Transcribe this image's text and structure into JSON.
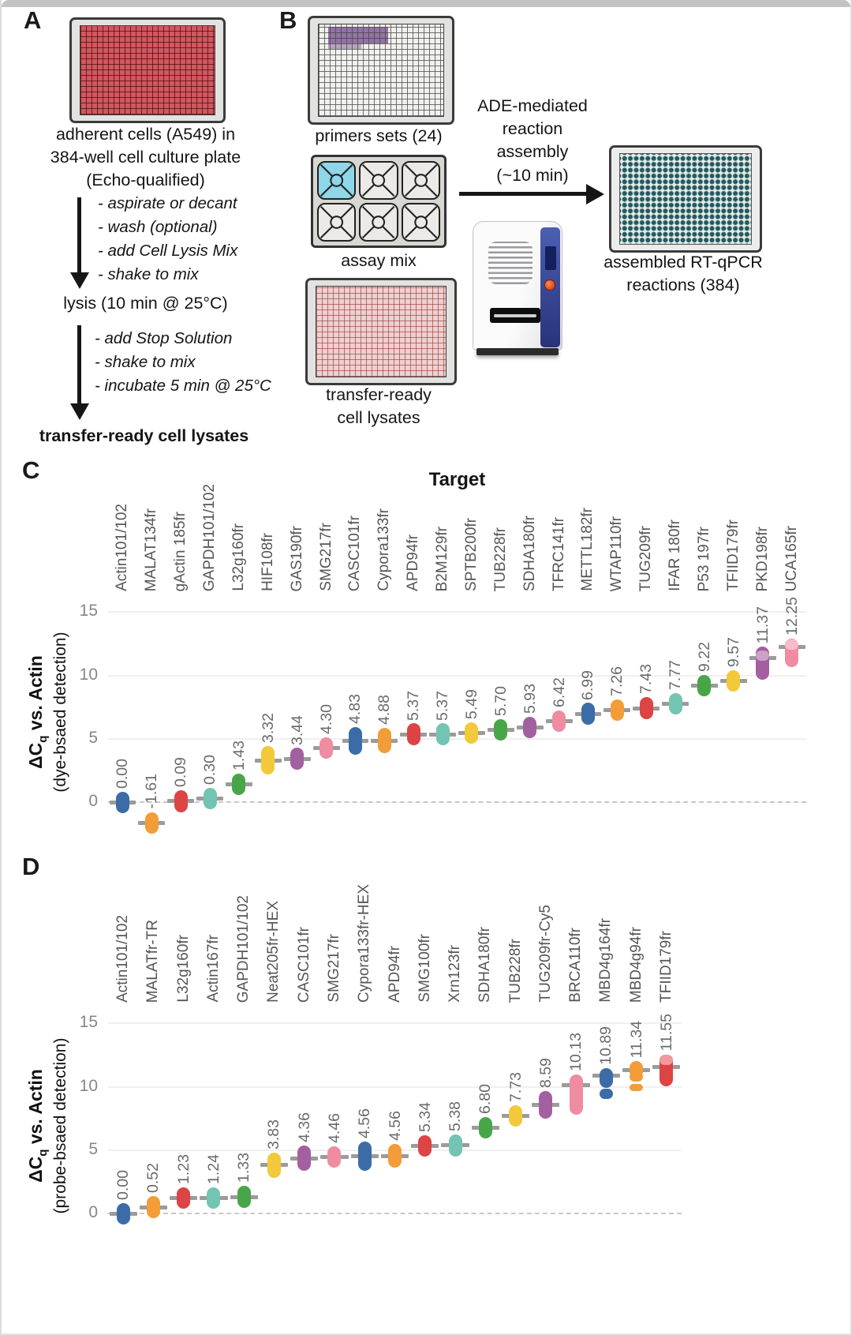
{
  "panels": {
    "a": {
      "label": "A",
      "plate_caption": "adherent cells (A549) in\n384-well cell culture plate\n(Echo-qualified)",
      "step1": [
        "- aspirate or decant",
        "- wash (optional)",
        "- add Cell Lysis Mix",
        "- shake to mix"
      ],
      "lysis": "lysis (10 min @ 25°C)",
      "step2": [
        "- add Stop Solution",
        "- shake to mix",
        "- incubate 5 min @ 25°C"
      ],
      "result": "transfer-ready cell lysates"
    },
    "b": {
      "label": "B",
      "primers_caption": "primers sets (24)",
      "assay_caption": "assay mix",
      "lysates_caption": "transfer-ready\ncell lysates",
      "assembly_text": "ADE-mediated\nreaction\nassembly\n(~10 min)",
      "product_caption": "assembled RT-qPCR\nreactions (384)"
    },
    "c": {
      "label": "C"
    },
    "d": {
      "label": "D"
    }
  },
  "colors": {
    "blue": "#3c6ca8",
    "orange": "#f29d38",
    "red": "#dd4444",
    "teal": "#74c4b4",
    "green": "#48a648",
    "yellow": "#f2c93a",
    "purple": "#a360a0",
    "pink": "#f08ca2"
  },
  "chart_data": [
    {
      "id": "C",
      "type": "scatter",
      "title": "Target",
      "ylabel": {
        "pre": "ΔC",
        "sub": "q",
        "post": " vs. Actin"
      },
      "ylabel_sub": "(dye-bsaed detection)",
      "yticks": [
        15,
        10,
        5,
        0
      ],
      "ylim": [
        -3.4,
        16.4
      ],
      "zero_line": "dashed",
      "points": [
        {
          "label": "Actin101/102",
          "value": 0.0,
          "display": "0.00",
          "color": "blue"
        },
        {
          "label": "MALAT134fr",
          "value": -1.61,
          "display": "-1.61",
          "color": "orange"
        },
        {
          "label": "gActin 185fr",
          "value": 0.09,
          "display": "0.09",
          "color": "red"
        },
        {
          "label": "GAPDH101/102",
          "value": 0.3,
          "display": "0.30",
          "color": "teal"
        },
        {
          "label": "L32g160fr",
          "value": 1.43,
          "display": "1.43",
          "color": "green"
        },
        {
          "label": "HIF108fr",
          "value": 3.32,
          "display": "3.32",
          "color": "yellow",
          "h": 2.2
        },
        {
          "label": "GAS190fr",
          "value": 3.44,
          "display": "3.44",
          "color": "purple"
        },
        {
          "label": "SMG217fr",
          "value": 4.3,
          "display": "4.30",
          "color": "pink"
        },
        {
          "label": "CASC101fr",
          "value": 4.83,
          "display": "4.83",
          "color": "blue",
          "h": 2.2
        },
        {
          "label": "Cypora133fr",
          "value": 4.88,
          "display": "4.88",
          "color": "orange",
          "h": 2.0
        },
        {
          "label": "APD94fr",
          "value": 5.37,
          "display": "5.37",
          "color": "red"
        },
        {
          "label": "B2M129fr",
          "value": 5.37,
          "display": "5.37",
          "color": "teal"
        },
        {
          "label": "SPTB200fr",
          "value": 5.49,
          "display": "5.49",
          "color": "yellow"
        },
        {
          "label": "TUB228fr",
          "value": 5.7,
          "display": "5.70",
          "color": "green"
        },
        {
          "label": "SDHA180fr",
          "value": 5.93,
          "display": "5.93",
          "color": "purple"
        },
        {
          "label": "TFRC141fr",
          "value": 6.42,
          "display": "6.42",
          "color": "pink"
        },
        {
          "label": "METTL182fr",
          "value": 6.99,
          "display": "6.99",
          "color": "blue"
        },
        {
          "label": "WTAP110fr",
          "value": 7.26,
          "display": "7.26",
          "color": "orange"
        },
        {
          "label": "TUG209fr",
          "value": 7.43,
          "display": "7.43",
          "color": "red"
        },
        {
          "label": "IFAR 180fr",
          "value": 7.77,
          "display": "7.77",
          "color": "teal"
        },
        {
          "label": "P53 197fr",
          "value": 9.22,
          "display": "9.22",
          "color": "green"
        },
        {
          "label": "TFIID179fr",
          "value": 9.57,
          "display": "9.57",
          "color": "yellow"
        },
        {
          "label": "PKD198fr",
          "value": 11.37,
          "display": "11.37",
          "color": "purple",
          "blobs": [
            {
              "c": 11.0,
              "h": 2.6
            },
            {
              "c": 11.55,
              "h": 0.8,
              "color": "#cfa0c8"
            }
          ]
        },
        {
          "label": "UCA165fr",
          "value": 12.25,
          "display": "12.25",
          "color": "pink",
          "blobs": [
            {
              "c": 11.8,
              "h": 2.2
            },
            {
              "c": 12.45,
              "h": 0.8,
              "color": "#f6bccb"
            }
          ]
        }
      ]
    },
    {
      "id": "D",
      "type": "scatter",
      "title": "",
      "ylabel": {
        "pre": "ΔC",
        "sub": "q",
        "post": " vs. Actin"
      },
      "ylabel_sub": "(probe-bsaed detection)",
      "yticks": [
        15,
        10,
        5,
        0
      ],
      "ylim": [
        -3.4,
        16.4
      ],
      "zero_line": "dashed",
      "points": [
        {
          "label": "Actin101/102",
          "value": 0.0,
          "display": "0.00",
          "color": "blue"
        },
        {
          "label": "MALATfr-TR",
          "value": 0.52,
          "display": "0.52",
          "color": "orange"
        },
        {
          "label": "L32g160fr",
          "value": 1.23,
          "display": "1.23",
          "color": "red"
        },
        {
          "label": "Actin167fr",
          "value": 1.24,
          "display": "1.24",
          "color": "teal"
        },
        {
          "label": "GAPDH101/102",
          "value": 1.33,
          "display": "1.33",
          "color": "green"
        },
        {
          "label": "Neat205fr-HEX",
          "value": 3.83,
          "display": "3.83",
          "color": "yellow",
          "h": 2.0
        },
        {
          "label": "CASC101fr",
          "value": 4.36,
          "display": "4.36",
          "color": "purple",
          "h": 2.0
        },
        {
          "label": "SMG217fr",
          "value": 4.46,
          "display": "4.46",
          "color": "pink"
        },
        {
          "label": "Cypora133fr-HEX",
          "value": 4.56,
          "display": "4.56",
          "color": "blue",
          "h": 2.3
        },
        {
          "label": "APD94fr",
          "value": 4.56,
          "display": "4.56",
          "color": "orange",
          "h": 1.9
        },
        {
          "label": "SMG100fr",
          "value": 5.34,
          "display": "5.34",
          "color": "red"
        },
        {
          "label": "Xrn123fr",
          "value": 5.38,
          "display": "5.38",
          "color": "teal"
        },
        {
          "label": "SDHA180fr",
          "value": 6.8,
          "display": "6.80",
          "color": "green"
        },
        {
          "label": "TUB228fr",
          "value": 7.73,
          "display": "7.73",
          "color": "yellow"
        },
        {
          "label": "TUG209fr-Cy5",
          "value": 8.59,
          "display": "8.59",
          "color": "purple",
          "h": 2.2
        },
        {
          "label": "BRCA110fr",
          "value": 10.13,
          "display": "10.13",
          "color": "pink",
          "blobs": [
            {
              "c": 9.4,
              "h": 3.2
            }
          ]
        },
        {
          "label": "MBD4g164fr",
          "value": 10.89,
          "display": "10.89",
          "color": "blue",
          "blobs": [
            {
              "c": 10.7,
              "h": 1.6
            },
            {
              "c": 9.45,
              "h": 0.8
            }
          ]
        },
        {
          "label": "MBD4g94fr",
          "value": 11.34,
          "display": "11.34",
          "color": "orange",
          "blobs": [
            {
              "c": 11.35,
              "h": 1.4
            },
            {
              "c": 10.8,
              "h": 0.8
            },
            {
              "c": 9.95,
              "h": 0.6
            }
          ]
        },
        {
          "label": "TFIID179fr",
          "value": 11.55,
          "display": "11.55",
          "color": "red",
          "blobs": [
            {
              "c": 11.3,
              "h": 2.5
            },
            {
              "c": 12.15,
              "h": 0.8,
              "color": "#f09aa0"
            }
          ]
        }
      ]
    }
  ]
}
